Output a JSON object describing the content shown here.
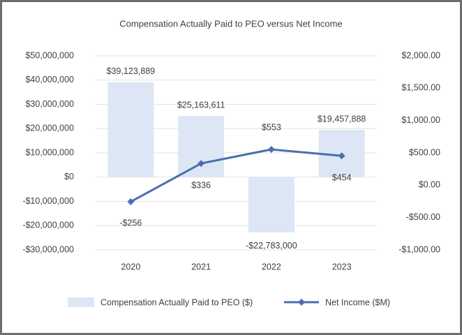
{
  "chart_data": {
    "type": "bar",
    "title": "Compensation Actually Paid to PEO versus Net Income",
    "categories": [
      "2020",
      "2021",
      "2022",
      "2023"
    ],
    "series": [
      {
        "name": "Compensation Actually Paid to PEO ($)",
        "type": "bar",
        "color": "#dde6f4",
        "values": [
          39123889,
          25163611,
          -22783000,
          19457888
        ],
        "value_labels": [
          "$39,123,889",
          "$25,163,611",
          "-$22,783,000",
          "$19,457,888"
        ]
      },
      {
        "name": "Net Income ($M)",
        "type": "line",
        "axis": "y2",
        "color": "#4a6fae",
        "values": [
          -256,
          336,
          553,
          454
        ],
        "value_labels": [
          "-$256",
          "$336",
          "$553",
          "$454"
        ]
      }
    ],
    "ylim": [
      -30000000,
      50000000
    ],
    "yticks": [
      {
        "value": -30000000,
        "label": "-$30,000,000"
      },
      {
        "value": -20000000,
        "label": "-$20,000,000"
      },
      {
        "value": -10000000,
        "label": "-$10,000,000"
      },
      {
        "value": 0,
        "label": "$0"
      },
      {
        "value": 10000000,
        "label": "$10,000,000"
      },
      {
        "value": 20000000,
        "label": "$20,000,000"
      },
      {
        "value": 30000000,
        "label": "$30,000,000"
      },
      {
        "value": 40000000,
        "label": "$40,000,000"
      },
      {
        "value": 50000000,
        "label": "$50,000,000"
      }
    ],
    "y2lim": [
      -1000,
      2000
    ],
    "y2ticks": [
      {
        "value": -1000,
        "label": "-$1,000.00"
      },
      {
        "value": -500,
        "label": "-$500.00"
      },
      {
        "value": 0,
        "label": "$0.00"
      },
      {
        "value": 500,
        "label": "$500.00"
      },
      {
        "value": 1000,
        "label": "$1,000.00"
      },
      {
        "value": 1500,
        "label": "$1,500.00"
      },
      {
        "value": 2000,
        "label": "$2,000.00"
      }
    ],
    "grid": true,
    "legend": "bottom"
  }
}
